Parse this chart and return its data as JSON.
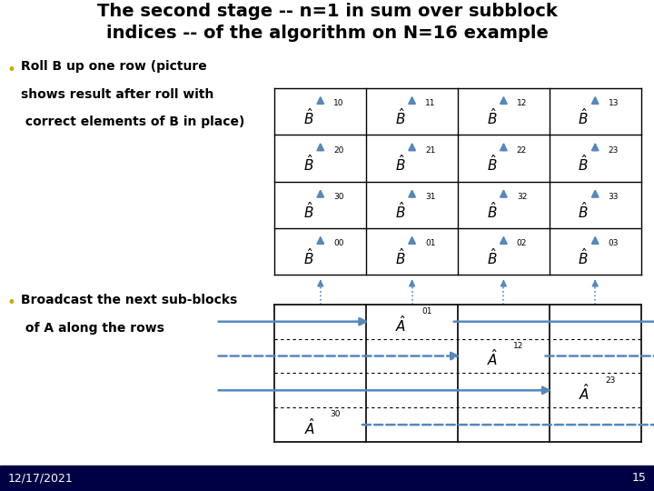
{
  "title_line1": "The second stage -- n=1 in sum over subblock",
  "title_line2": "indices -- of the algorithm on N=16 example",
  "title_fontsize": 14,
  "title_color": "#000000",
  "background_color": "#ffffff",
  "bullet_color": "#ccaa00",
  "text_color": "#000000",
  "arrow_color": "#5588bb",
  "grid_line_color": "#000000",
  "footer_bar_color": "#000044",
  "bullet1_text_line1": "Roll B up one row (picture",
  "bullet1_text_line2": "shows result after roll with",
  "bullet1_text_line3": " correct elements of B in place)",
  "bullet2_text_line1": "Broadcast the next sub-blocks",
  "bullet2_text_line2": " of A along the rows",
  "date_text": "12/17/2021",
  "page_num": "15",
  "B_labels": [
    [
      "10",
      "11",
      "12",
      "13"
    ],
    [
      "20",
      "21",
      "22",
      "23"
    ],
    [
      "30",
      "31",
      "32",
      "33"
    ],
    [
      "00",
      "01",
      "02",
      "03"
    ]
  ],
  "A_labels": [
    [
      null,
      "01",
      null,
      null
    ],
    [
      null,
      null,
      "12",
      null
    ],
    [
      null,
      null,
      null,
      "23"
    ],
    [
      "30",
      null,
      null,
      null
    ]
  ],
  "Bgx": 0.42,
  "Bgy": 0.44,
  "Bgw": 0.56,
  "Bgh": 0.38,
  "Agx": 0.42,
  "Agy": 0.1,
  "Agw": 0.56,
  "Agh": 0.28
}
